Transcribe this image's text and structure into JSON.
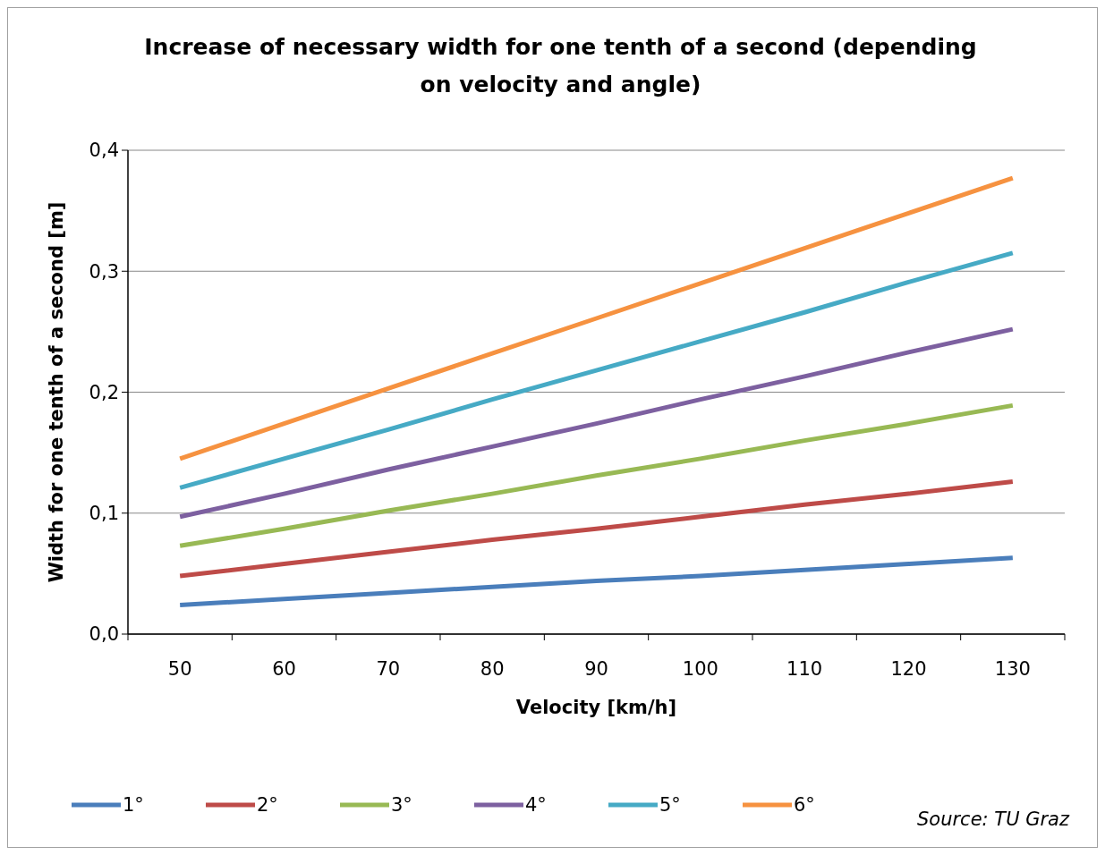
{
  "chart_data": {
    "type": "line",
    "title": "Increase of necessary width for one tenth of a second (depending on velocity and angle)",
    "xlabel": "Velocity [km/h]",
    "ylabel": "Width for one tenth of a second [m]",
    "categories": [
      "50",
      "60",
      "70",
      "80",
      "90",
      "100",
      "110",
      "120",
      "130"
    ],
    "series": [
      {
        "name": "1°",
        "color": "#4a7ebb",
        "values": [
          0.024,
          0.029,
          0.034,
          0.039,
          0.044,
          0.048,
          0.053,
          0.058,
          0.063
        ]
      },
      {
        "name": "2°",
        "color": "#be4b48",
        "values": [
          0.048,
          0.058,
          0.068,
          0.078,
          0.087,
          0.097,
          0.107,
          0.116,
          0.126
        ]
      },
      {
        "name": "3°",
        "color": "#98b954",
        "values": [
          0.073,
          0.087,
          0.102,
          0.116,
          0.131,
          0.145,
          0.16,
          0.174,
          0.189
        ]
      },
      {
        "name": "4°",
        "color": "#7d60a0",
        "values": [
          0.097,
          0.116,
          0.136,
          0.155,
          0.174,
          0.194,
          0.213,
          0.233,
          0.252
        ]
      },
      {
        "name": "5°",
        "color": "#46aac5",
        "values": [
          0.121,
          0.145,
          0.169,
          0.194,
          0.218,
          0.242,
          0.266,
          0.291,
          0.315
        ]
      },
      {
        "name": "6°",
        "color": "#f69240",
        "values": [
          0.145,
          0.174,
          0.203,
          0.232,
          0.261,
          0.29,
          0.319,
          0.348,
          0.377
        ]
      }
    ],
    "ylim": [
      0,
      0.4
    ],
    "yticks": [
      {
        "value": 0,
        "label": "0,0"
      },
      {
        "value": 0.1,
        "label": "0,1"
      },
      {
        "value": 0.2,
        "label": "0,2"
      },
      {
        "value": 0.3,
        "label": "0,3"
      },
      {
        "value": 0.4,
        "label": "0,4"
      }
    ],
    "grid": "y",
    "legend": "bottom",
    "marker": "none",
    "line_style": "solid",
    "annotations": [
      "Source: TU Graz"
    ]
  }
}
